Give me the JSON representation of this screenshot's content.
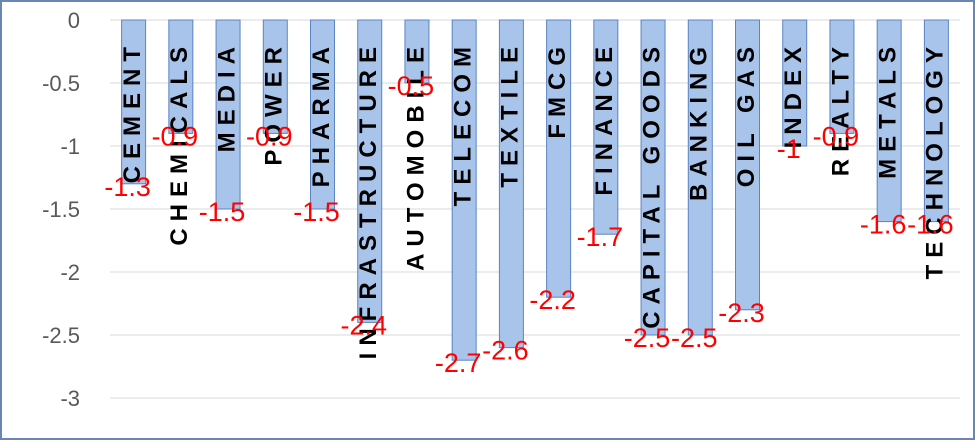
{
  "chart_data": {
    "type": "bar",
    "categories": [
      "CEMENT",
      "CHEMICALS",
      "MEDIA",
      "POWER",
      "PHARMA",
      "INFRASTRUCTURE",
      "AUTOMOBILE",
      "TELECOM",
      "TEXTILE",
      "FMCG",
      "FINANCE",
      "CAPITAL GOODS",
      "BANKING",
      "OIL GAS",
      "INDEX",
      "REALTY",
      "METALS",
      "TECHNOLOGY"
    ],
    "values": [
      -1.3,
      -0.9,
      -1.5,
      -0.9,
      -1.5,
      -2.4,
      -0.5,
      -2.7,
      -2.6,
      -2.2,
      -1.7,
      -2.5,
      -2.5,
      -2.3,
      -1.0,
      -0.9,
      -1.6,
      -1.6
    ],
    "data_labels": [
      "-1.3",
      "-0.9",
      "-1.5",
      "-0.9",
      "-1.5",
      "-2.4",
      "-0.5",
      "-2.7",
      "-2.6",
      "-2.2",
      "-1.7",
      "-2.5",
      "-2.5",
      "-2.3",
      "-1",
      "-0.9",
      "-1.6",
      "-1.6"
    ],
    "y_ticks": [
      "0",
      "-0.5",
      "-1",
      "-1.5",
      "-2",
      "-2.5",
      "-3"
    ],
    "ylim": [
      -3.25,
      0
    ],
    "grid": true,
    "bar_fill": "#a9c4ea",
    "bar_border": "#5b84c4",
    "label_color": "#ff0000",
    "title": "",
    "xlabel": "",
    "ylabel": ""
  }
}
